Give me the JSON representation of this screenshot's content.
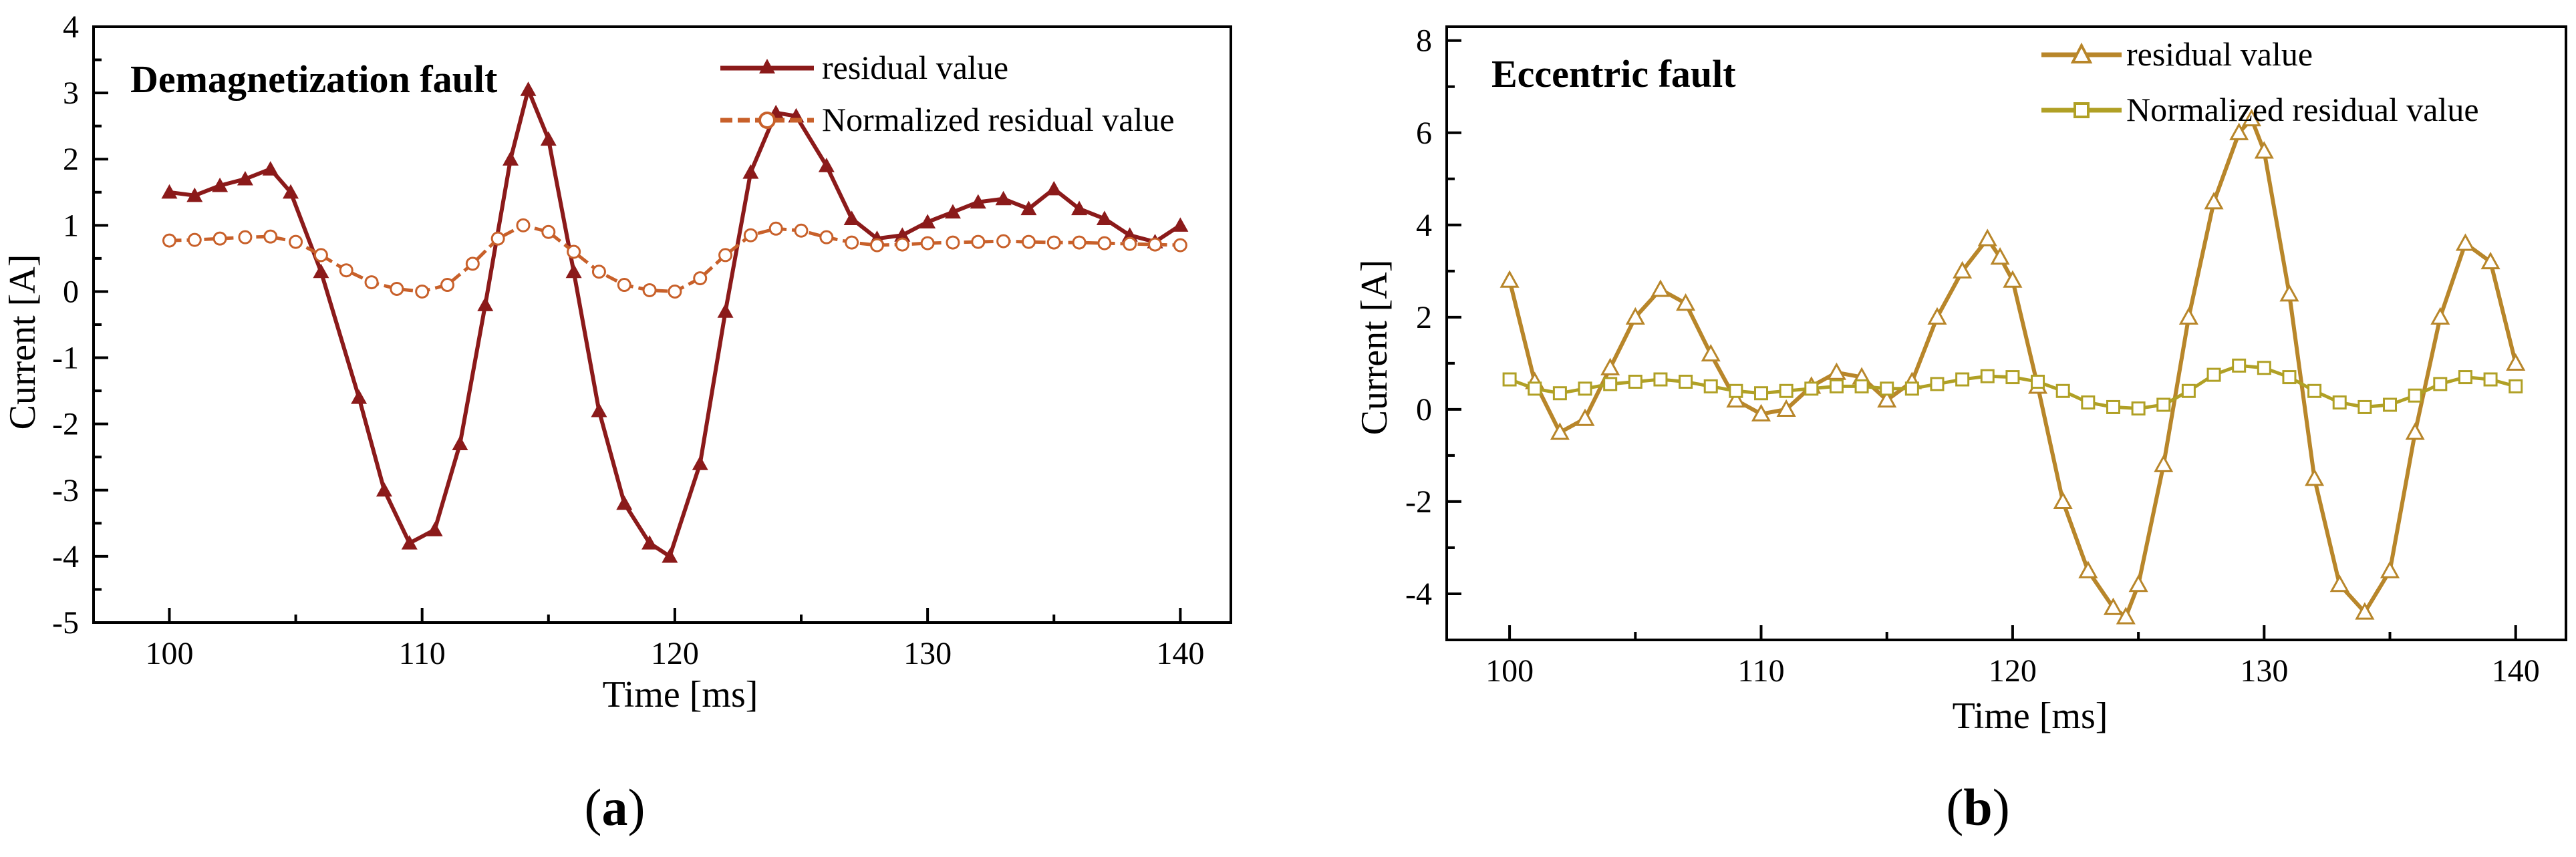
{
  "chart_data": [
    {
      "type": "line",
      "panel_label": "a",
      "title": "Demagnetization fault",
      "xlabel": "Time [ms]",
      "ylabel": "Current [A]",
      "xlim": [
        97,
        142
      ],
      "ylim": [
        -5,
        4
      ],
      "xticks": [
        100,
        110,
        120,
        130,
        140
      ],
      "yticks": [
        -5,
        -4,
        -3,
        -2,
        -1,
        0,
        1,
        2,
        3,
        4
      ],
      "legend_position": "top-right",
      "series": [
        {
          "name": "residual value",
          "color": "#8b1a1a",
          "marker": "filled-triangle",
          "dash": false,
          "x": [
            100,
            101,
            102,
            103,
            104,
            104.8,
            106,
            107.5,
            108.5,
            109.5,
            110.5,
            111.5,
            112.5,
            113.5,
            114.2,
            115,
            116,
            117,
            118,
            119,
            119.8,
            121,
            122,
            123,
            124,
            124.8,
            126,
            127,
            128,
            129,
            130,
            131,
            132,
            133,
            134,
            135,
            136,
            137,
            138,
            139,
            140
          ],
          "values": [
            1.5,
            1.45,
            1.6,
            1.7,
            1.85,
            1.5,
            0.3,
            -1.6,
            -3.0,
            -3.8,
            -3.6,
            -2.3,
            -0.2,
            2.0,
            3.05,
            2.3,
            0.3,
            -1.8,
            -3.2,
            -3.8,
            -4.0,
            -2.6,
            -0.3,
            1.8,
            2.7,
            2.65,
            1.9,
            1.1,
            0.8,
            0.85,
            1.05,
            1.2,
            1.35,
            1.4,
            1.25,
            1.55,
            1.25,
            1.1,
            0.85,
            0.75,
            1.0
          ]
        },
        {
          "name": "Normalized residual value",
          "color": "#c8602a",
          "marker": "open-circle",
          "dash": true,
          "x": [
            100,
            101,
            102,
            103,
            104,
            105,
            106,
            107,
            108,
            109,
            110,
            111,
            112,
            113,
            114,
            115,
            116,
            117,
            118,
            119,
            120,
            121,
            122,
            123,
            124,
            125,
            126,
            127,
            128,
            129,
            130,
            131,
            132,
            133,
            134,
            135,
            136,
            137,
            138,
            139,
            140
          ],
          "values": [
            0.77,
            0.78,
            0.8,
            0.82,
            0.83,
            0.75,
            0.55,
            0.32,
            0.14,
            0.04,
            0.0,
            0.1,
            0.42,
            0.8,
            1.0,
            0.9,
            0.6,
            0.3,
            0.1,
            0.02,
            0.0,
            0.2,
            0.55,
            0.85,
            0.95,
            0.92,
            0.82,
            0.74,
            0.7,
            0.71,
            0.73,
            0.74,
            0.75,
            0.76,
            0.75,
            0.74,
            0.74,
            0.73,
            0.72,
            0.71,
            0.7
          ]
        }
      ]
    },
    {
      "type": "line",
      "panel_label": "b",
      "title": "Eccentric fault",
      "xlabel": "Time [ms]",
      "ylabel": "Current [A]",
      "xlim": [
        97.5,
        142
      ],
      "ylim": [
        -5,
        8.3
      ],
      "xticks": [
        100,
        110,
        120,
        130,
        140
      ],
      "yticks": [
        -4,
        -2,
        0,
        2,
        4,
        6,
        8
      ],
      "legend_position": "top-right",
      "series": [
        {
          "name": "residual value",
          "color": "#b8862a",
          "marker": "open-triangle",
          "dash": false,
          "x": [
            100,
            101,
            102,
            103,
            104,
            105,
            106,
            107,
            108,
            109,
            110,
            111,
            112,
            113,
            114,
            115,
            116,
            117,
            118,
            119,
            119.5,
            120,
            121,
            122,
            123,
            124,
            124.5,
            125,
            126,
            127,
            128,
            129,
            129.5,
            130,
            131,
            132,
            133,
            134,
            135,
            136,
            137,
            138,
            139,
            140
          ],
          "values": [
            2.8,
            0.6,
            -0.5,
            -0.2,
            0.9,
            2.0,
            2.6,
            2.3,
            1.2,
            0.2,
            -0.1,
            0.0,
            0.5,
            0.8,
            0.7,
            0.2,
            0.6,
            2.0,
            3.0,
            3.7,
            3.3,
            2.8,
            0.5,
            -2.0,
            -3.5,
            -4.3,
            -4.5,
            -3.8,
            -1.2,
            2.0,
            4.5,
            6.0,
            6.3,
            5.6,
            2.5,
            -1.5,
            -3.8,
            -4.4,
            -3.5,
            -0.5,
            2.0,
            3.6,
            3.2,
            1.0
          ]
        },
        {
          "name": "Normalized residual value",
          "color": "#b0a025",
          "marker": "open-square",
          "dash": false,
          "x": [
            100,
            101,
            102,
            103,
            104,
            105,
            106,
            107,
            108,
            109,
            110,
            111,
            112,
            113,
            114,
            115,
            116,
            117,
            118,
            119,
            120,
            121,
            122,
            123,
            124,
            125,
            126,
            127,
            128,
            129,
            130,
            131,
            132,
            133,
            134,
            135,
            136,
            137,
            138,
            139,
            140
          ],
          "values": [
            0.65,
            0.45,
            0.35,
            0.45,
            0.55,
            0.6,
            0.65,
            0.6,
            0.5,
            0.4,
            0.35,
            0.4,
            0.45,
            0.5,
            0.5,
            0.45,
            0.45,
            0.55,
            0.65,
            0.72,
            0.7,
            0.6,
            0.4,
            0.15,
            0.05,
            0.02,
            0.1,
            0.4,
            0.75,
            0.95,
            0.9,
            0.7,
            0.4,
            0.15,
            0.05,
            0.1,
            0.3,
            0.55,
            0.7,
            0.65,
            0.5
          ]
        }
      ]
    }
  ]
}
